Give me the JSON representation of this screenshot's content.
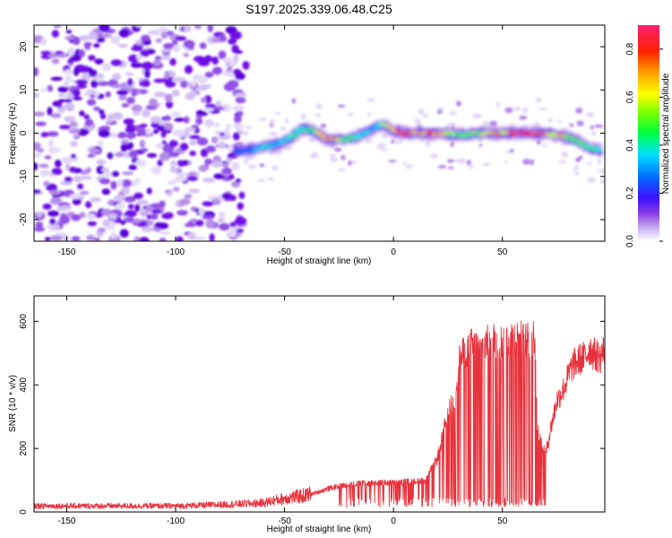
{
  "title": "S197.2025.339.06.48.C25",
  "colors": {
    "snr_line": "#e8323c",
    "axes": "#000000",
    "colormap": [
      "#ffffff",
      "#dccdf6",
      "#b48ae8",
      "#8a3ce6",
      "#6a00e8",
      "#2a10ff",
      "#0060ff",
      "#00c0ff",
      "#00ffd0",
      "#00ff60",
      "#60ff00",
      "#d0ff00",
      "#ffd000",
      "#ff7000",
      "#ff1040",
      "#ff1f6f"
    ]
  },
  "chart_data": [
    {
      "type": "heatmap",
      "panel": "top",
      "title": "S197.2025.339.06.48.C25",
      "xlabel": "Height of straight line (km)",
      "ylabel": "Frequency (Hz)",
      "xlim": [
        -165,
        97
      ],
      "ylim": [
        -25,
        25
      ],
      "xticks": [
        -150,
        -100,
        -50,
        0,
        50
      ],
      "yticks": [
        -20,
        -10,
        0,
        10,
        20
      ],
      "noise_region_x": [
        -165,
        -70
      ],
      "ridge": {
        "description": "frequency track of peak normalized spectral amplitude",
        "x": [
          -72,
          -65,
          -58,
          -50,
          -42,
          -37,
          -30,
          -22,
          -15,
          -8,
          -4,
          0,
          5,
          10,
          20,
          30,
          40,
          50,
          60,
          70,
          80,
          85,
          90,
          95
        ],
        "y": [
          -4,
          -4,
          -3,
          -2,
          1,
          0.5,
          -1.5,
          -1.5,
          -0.5,
          1.5,
          2,
          0.5,
          0,
          0,
          0,
          -0.5,
          0,
          0,
          0,
          0,
          -1,
          -2,
          -3.5,
          -4
        ],
        "amplitude": [
          0.35,
          0.4,
          0.45,
          0.5,
          0.55,
          0.6,
          0.85,
          0.6,
          0.5,
          0.4,
          0.75,
          0.8,
          0.9,
          0.8,
          0.85,
          0.6,
          0.7,
          0.75,
          0.9,
          0.8,
          0.7,
          0.6,
          0.55,
          0.5
        ]
      },
      "colorbar": {
        "label": "Normalized spectral amplitude",
        "range": [
          0.0,
          0.9
        ],
        "ticks": [
          "0.0",
          "0.2",
          "0.4",
          "0.6",
          "0.8"
        ]
      }
    },
    {
      "type": "line",
      "panel": "bottom",
      "xlabel": "Height of straight line (km)",
      "ylabel": "SNR (10 * v/v)",
      "xlim": [
        -165,
        97
      ],
      "ylim": [
        0,
        680
      ],
      "xticks": [
        -150,
        -100,
        -50,
        0,
        50
      ],
      "yticks": [
        0,
        200,
        400,
        600
      ],
      "series": [
        {
          "name": "SNR",
          "envelope_x": [
            -165,
            -100,
            -75,
            -60,
            -50,
            -40,
            -30,
            -20,
            -10,
            0,
            10,
            15,
            20,
            22,
            25,
            28,
            30,
            35,
            40,
            45,
            50,
            55,
            60,
            63,
            65,
            66,
            68,
            70,
            72,
            75,
            78,
            80,
            82,
            85,
            88,
            90,
            92,
            95,
            97
          ],
          "envelope_y": [
            20,
            20,
            25,
            30,
            45,
            55,
            80,
            95,
            100,
            100,
            105,
            110,
            180,
            240,
            340,
            380,
            520,
            570,
            560,
            590,
            580,
            600,
            590,
            580,
            610,
            280,
            230,
            200,
            280,
            380,
            420,
            460,
            500,
            520,
            530,
            560,
            540,
            530,
            560
          ],
          "dropout_range_x": [
            -25,
            70
          ],
          "dropout_floor": 15
        }
      ]
    }
  ]
}
